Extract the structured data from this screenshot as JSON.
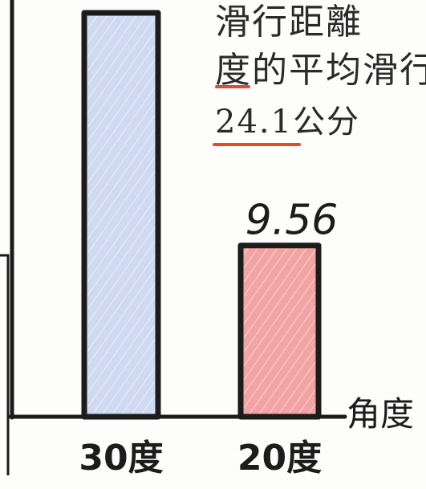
{
  "chart_data": {
    "type": "bar",
    "categories": [
      "30度",
      "20度"
    ],
    "values": [
      null,
      9.56
    ],
    "value_labels": [
      "",
      "9.56"
    ],
    "xlabel": "角度",
    "ylabel": "",
    "ylim": [
      0,
      32
    ],
    "grid": false,
    "colors": [
      "#cfd9f2",
      "#f2a3a3"
    ]
  },
  "annotation": {
    "lines": [
      "滑行距離",
      "度的平均滑行",
      "24.1公分"
    ]
  },
  "colors": {
    "ink": "#1c1c1c",
    "underline": "#e24a2a"
  }
}
